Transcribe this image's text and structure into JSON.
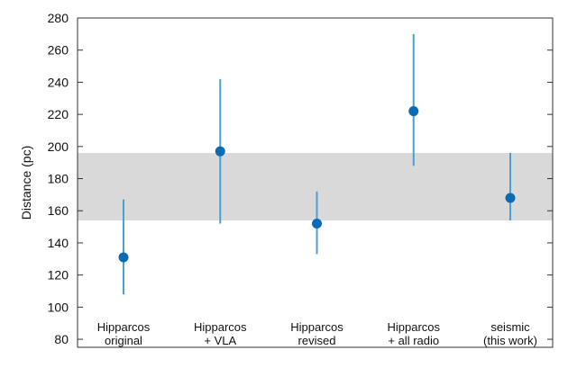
{
  "chart_data": {
    "type": "scatter",
    "title": "",
    "xlabel": "",
    "ylabel": "Distance (pc)",
    "ylim": [
      75,
      280
    ],
    "yticks": [
      80,
      100,
      120,
      140,
      160,
      180,
      200,
      220,
      240,
      260,
      280
    ],
    "band": {
      "low": 154,
      "high": 196
    },
    "categories": [
      {
        "lines": [
          "Hipparcos",
          "original"
        ],
        "value": 131,
        "err_low": 108,
        "err_high": 167
      },
      {
        "lines": [
          "Hipparcos",
          "+ VLA"
        ],
        "value": 197,
        "err_low": 152,
        "err_high": 242
      },
      {
        "lines": [
          "Hipparcos",
          "revised"
        ],
        "value": 152,
        "err_low": 133,
        "err_high": 172
      },
      {
        "lines": [
          "Hipparcos",
          "+ all radio"
        ],
        "value": 222,
        "err_low": 188,
        "err_high": 270
      },
      {
        "lines": [
          "seismic",
          "(this work)"
        ],
        "value": 168,
        "err_low": 154,
        "err_high": 196
      }
    ]
  },
  "colors": {
    "point": "#0a6bb5",
    "errorbar": "#4a9fd6",
    "band": "#d9d9d9",
    "frame": "#333333"
  }
}
